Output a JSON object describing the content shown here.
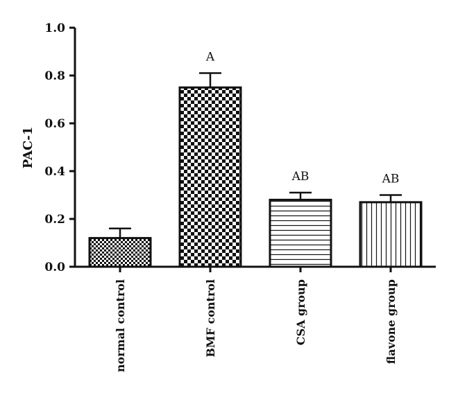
{
  "chart_data": {
    "type": "bar",
    "ylabel": "PAC-1",
    "xlabel": "",
    "ylim": [
      0,
      1.0
    ],
    "yticks": [
      "0.0",
      "0.2",
      "0.4",
      "0.6",
      "0.8",
      "1.0"
    ],
    "categories": [
      "normal control",
      "BMF control",
      "CSA group",
      "flavone group"
    ],
    "values": [
      0.12,
      0.75,
      0.28,
      0.27
    ],
    "errors": [
      0.04,
      0.06,
      0.03,
      0.03
    ],
    "annotations": [
      "",
      "A",
      "AB",
      "AB"
    ],
    "patterns": [
      "small-checker",
      "large-checker",
      "horizontal-lines",
      "vertical-lines"
    ],
    "color": "#111111"
  }
}
